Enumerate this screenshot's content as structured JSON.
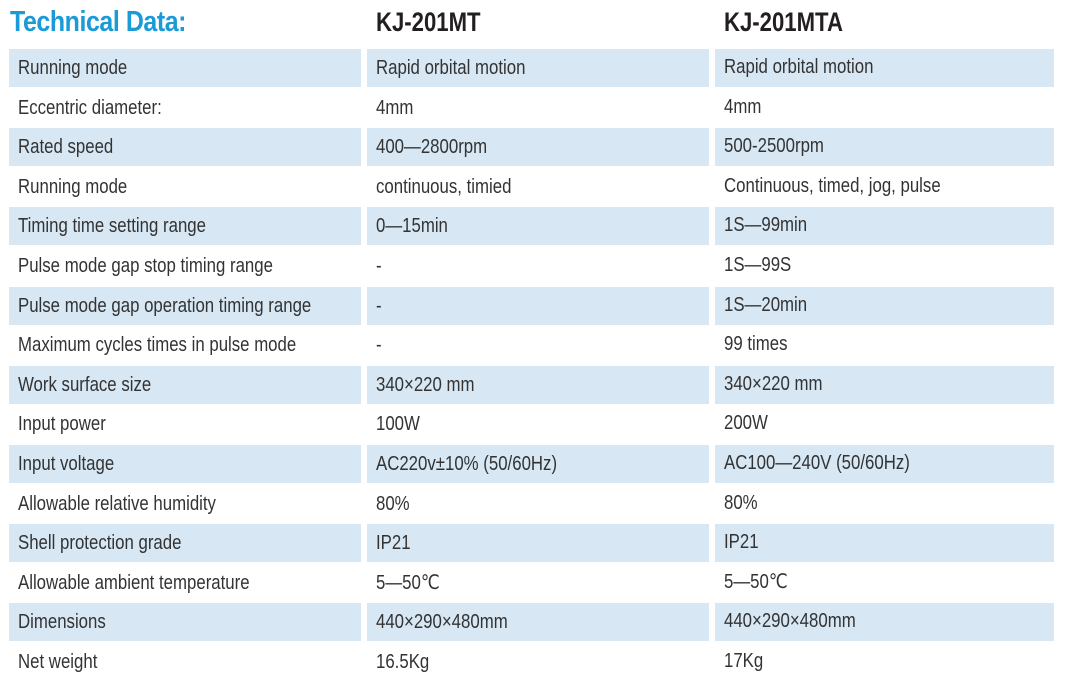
{
  "header": {
    "title": "Technical Data:",
    "models": [
      "KJ-201MT",
      "KJ-201MTA"
    ]
  },
  "rows": [
    {
      "label": "Running mode",
      "mt": "Rapid orbital motion",
      "mta": "Rapid orbital motion"
    },
    {
      "label": "Eccentric diameter:",
      "mt": "4mm",
      "mta": "4mm"
    },
    {
      "label": "Rated speed",
      "mt": "400—2800rpm",
      "mta": "500-2500rpm"
    },
    {
      "label": "Running mode",
      "mt": "continuous, timied",
      "mta": "Continuous, timed, jog, pulse"
    },
    {
      "label": "Timing time setting range",
      "mt": "0—15min",
      "mta": "1S—99min"
    },
    {
      "label": "Pulse mode gap stop timing range",
      "mt": "-",
      "mta": "1S—99S"
    },
    {
      "label": "Pulse mode gap operation timing range",
      "mt": "-",
      "mta": "1S—20min"
    },
    {
      "label": "Maximum cycles times in pulse mode",
      "mt": "-",
      "mta": "99 times"
    },
    {
      "label": "Work surface size",
      "mt": "340×220 mm",
      "mta": "340×220 mm"
    },
    {
      "label": "Input power",
      "mt": "100W",
      "mta": "200W"
    },
    {
      "label": "Input voltage",
      "mt": "AC220v±10% (50/60Hz)",
      "mta": "AC100—240V (50/60Hz)"
    },
    {
      "label": "Allowable relative humidity",
      "mt": "80%",
      "mta": "80%"
    },
    {
      "label": "Shell protection grade",
      "mt": "IP21",
      "mta": "IP21"
    },
    {
      "label": "Allowable ambient temperature",
      "mt": "5—50℃",
      "mta": "5—50℃"
    },
    {
      "label": "Dimensions",
      "mt": "440×290×480mm",
      "mta": "440×290×480mm"
    },
    {
      "label": "Net weight",
      "mt": "16.5Kg",
      "mta": "17Kg"
    }
  ],
  "colors": {
    "title": "#1a9ad7",
    "row_shade": "#d7e7f4",
    "text": "#333333"
  }
}
